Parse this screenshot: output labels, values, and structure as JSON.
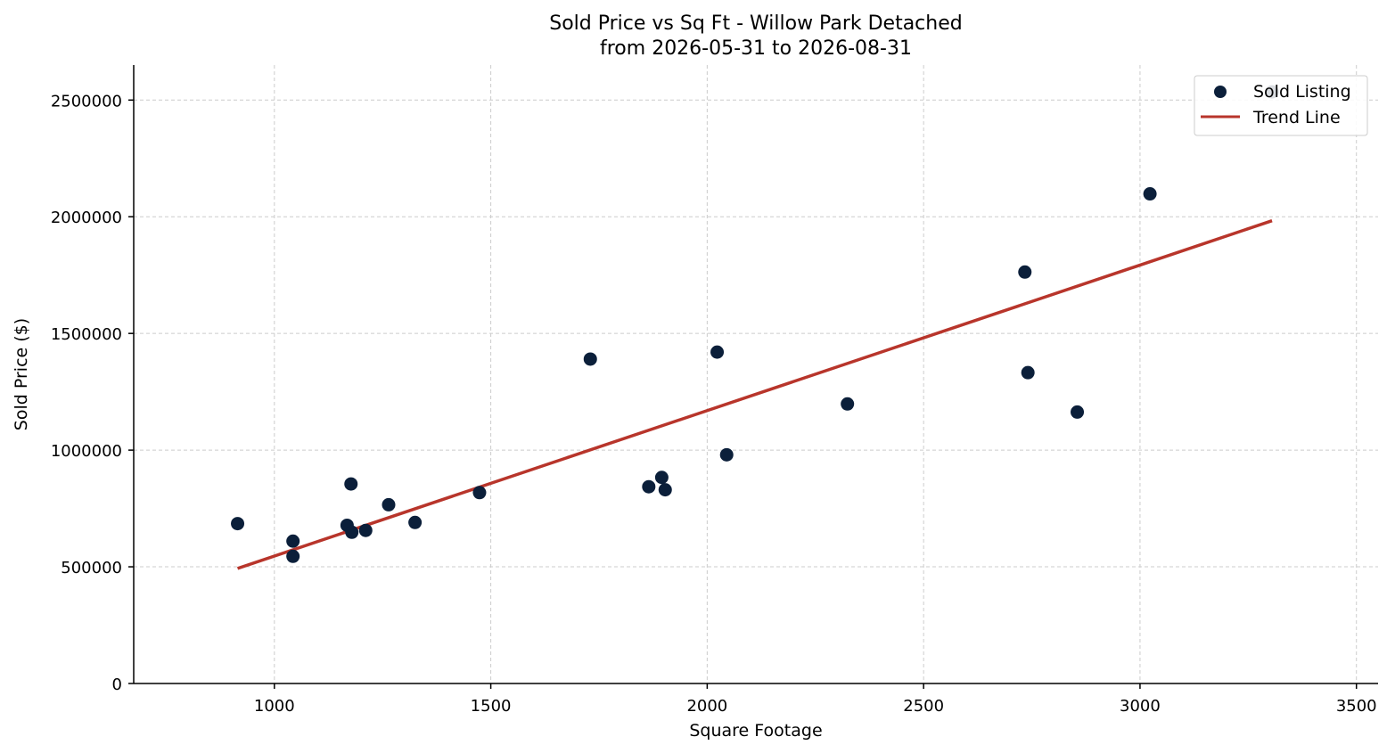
{
  "chart_data": {
    "type": "scatter",
    "title_line1": "Sold Price vs Sq Ft - Willow Park Detached",
    "title_line2": "from 2026-05-31 to 2026-08-31",
    "xlabel": "Square Footage",
    "ylabel": "Sold Price ($)",
    "xlim": [
      675,
      3550
    ],
    "ylim": [
      0,
      2650000
    ],
    "xticks": [
      1000,
      1500,
      2000,
      2500,
      3000,
      3500
    ],
    "yticks": [
      0,
      500000,
      1000000,
      1500000,
      2000000,
      2500000
    ],
    "grid": true,
    "legend_position": "top-right",
    "legend": {
      "scatter_label": "Sold Listing",
      "line_label": "Trend Line"
    },
    "colors": {
      "points": "#0b1f3a",
      "trend": "#b8352b"
    },
    "series": [
      {
        "name": "Sold Listing",
        "kind": "scatter",
        "points": [
          {
            "x": 915,
            "y": 685000
          },
          {
            "x": 1043,
            "y": 610000
          },
          {
            "x": 1043,
            "y": 545000
          },
          {
            "x": 1168,
            "y": 678000
          },
          {
            "x": 1177,
            "y": 855000
          },
          {
            "x": 1179,
            "y": 648000
          },
          {
            "x": 1211,
            "y": 656000
          },
          {
            "x": 1264,
            "y": 766000
          },
          {
            "x": 1325,
            "y": 690000
          },
          {
            "x": 1474,
            "y": 818000
          },
          {
            "x": 1730,
            "y": 1390000
          },
          {
            "x": 1865,
            "y": 843000
          },
          {
            "x": 1895,
            "y": 883000
          },
          {
            "x": 1903,
            "y": 830000
          },
          {
            "x": 2023,
            "y": 1420000
          },
          {
            "x": 2045,
            "y": 980000
          },
          {
            "x": 2324,
            "y": 1198000
          },
          {
            "x": 2734,
            "y": 1763000
          },
          {
            "x": 2741,
            "y": 1332000
          },
          {
            "x": 2855,
            "y": 1163000
          },
          {
            "x": 3023,
            "y": 2098000
          },
          {
            "x": 3305,
            "y": 2535000
          }
        ]
      },
      {
        "name": "Trend Line",
        "kind": "line",
        "points": [
          {
            "x": 915,
            "y": 493000
          },
          {
            "x": 3305,
            "y": 1983000
          }
        ]
      }
    ]
  }
}
